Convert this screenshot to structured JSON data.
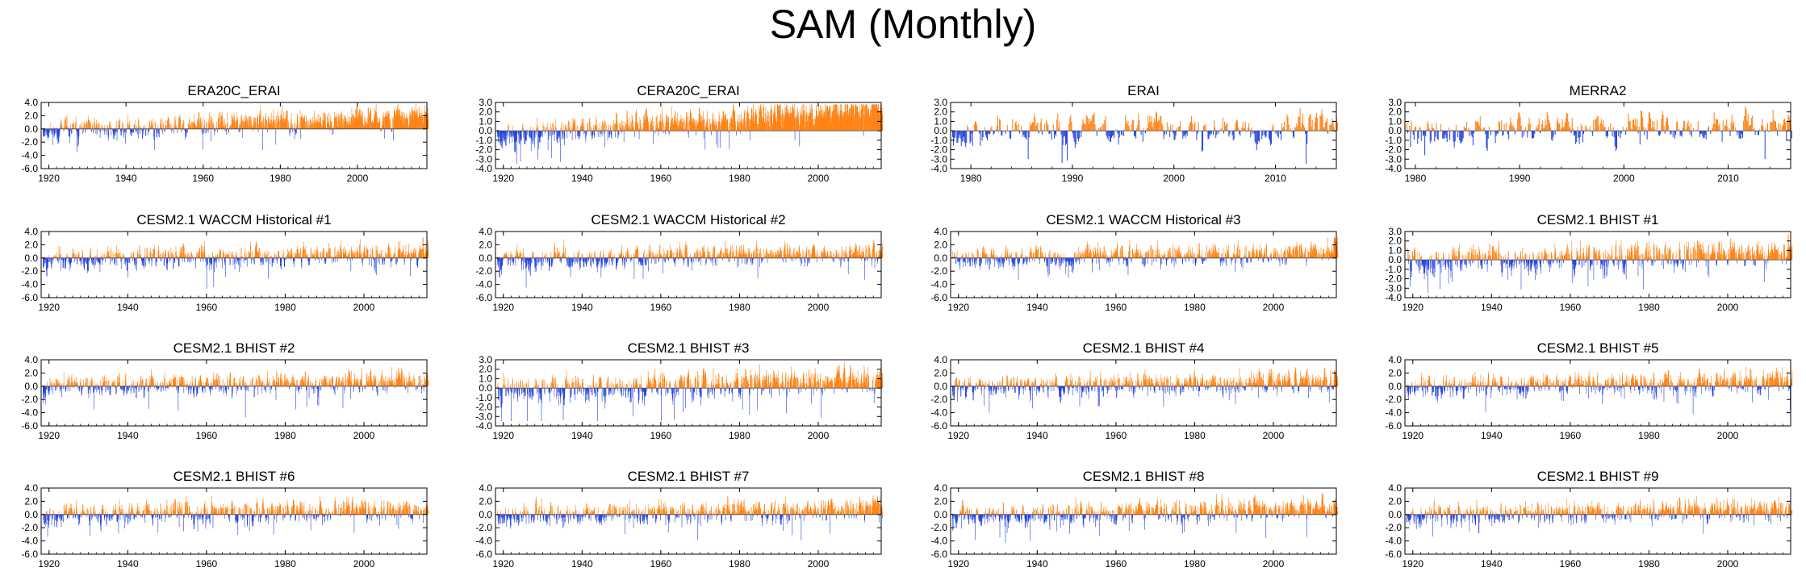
{
  "title": "SAM (Monthly)",
  "colors": {
    "positive": "#ff7f0e",
    "negative": "#1f3fe0",
    "faint": "#c8c8c8",
    "axis": "#000000"
  },
  "chart_data": [
    {
      "type": "bar",
      "title": "ERA20C_ERAI",
      "xlabel": "",
      "ylabel": "",
      "x_range": [
        1918,
        2018
      ],
      "ylim": [
        -6,
        4
      ],
      "yticks": [
        4,
        2,
        0,
        -2,
        -4,
        -6
      ],
      "ytick_labels": [
        "4.0",
        "2.0",
        "0.0",
        "-2.0",
        "-4.0",
        "-6.0"
      ],
      "xticks": [
        1920,
        1940,
        1960,
        1980,
        2000
      ],
      "xtick_labels": [
        "1920",
        "1940",
        "1960",
        "1980",
        "2000"
      ],
      "trend": 0.7,
      "amp": 1.1,
      "seed": 11
    },
    {
      "type": "bar",
      "title": "CERA20C_ERAI",
      "xlabel": "",
      "ylabel": "",
      "x_range": [
        1918,
        2016
      ],
      "ylim": [
        -4,
        3
      ],
      "yticks": [
        3,
        2,
        1,
        0,
        -1,
        -2,
        -3,
        -4
      ],
      "ytick_labels": [
        "3.0",
        "2.0",
        "1.0",
        "0.0",
        "-1.0",
        "-2.0",
        "-3.0",
        "-4.0"
      ],
      "xticks": [
        1920,
        1940,
        1960,
        1980,
        2000
      ],
      "xtick_labels": [
        "1920",
        "1940",
        "1960",
        "1980",
        "2000"
      ],
      "trend": 0.9,
      "amp": 0.9,
      "seed": 23
    },
    {
      "type": "bar",
      "title": "ERAI",
      "xlabel": "",
      "ylabel": "",
      "x_range": [
        1978,
        2016
      ],
      "ylim": [
        -4,
        3
      ],
      "yticks": [
        3,
        2,
        1,
        0,
        -1,
        -2,
        -3,
        -4
      ],
      "ytick_labels": [
        "3.0",
        "2.0",
        "1.0",
        "0.0",
        "-1.0",
        "-2.0",
        "-3.0",
        "-4.0"
      ],
      "xticks": [
        1980,
        1990,
        2000,
        2010
      ],
      "xtick_labels": [
        "1980",
        "1990",
        "2000",
        "2010"
      ],
      "trend": 0.2,
      "amp": 1.0,
      "seed": 37
    },
    {
      "type": "bar",
      "title": "MERRA2",
      "xlabel": "",
      "ylabel": "",
      "x_range": [
        1979,
        2016
      ],
      "ylim": [
        -4,
        3
      ],
      "yticks": [
        3,
        2,
        1,
        0,
        -1,
        -2,
        -3,
        -4
      ],
      "ytick_labels": [
        "3.0",
        "2.0",
        "1.0",
        "0.0",
        "-1.0",
        "-2.0",
        "-3.0",
        "-4.0"
      ],
      "xticks": [
        1980,
        1990,
        2000,
        2010
      ],
      "xtick_labels": [
        "1980",
        "1990",
        "2000",
        "2010"
      ],
      "trend": 0.2,
      "amp": 1.0,
      "seed": 41
    },
    {
      "type": "bar",
      "title": "CESM2.1 WACCM Historical #1",
      "xlabel": "",
      "ylabel": "",
      "x_range": [
        1918,
        2016
      ],
      "ylim": [
        -6,
        4
      ],
      "yticks": [
        4,
        2,
        0,
        -2,
        -4,
        -6
      ],
      "ytick_labels": [
        "4.0",
        "2.0",
        "0.0",
        "-2.0",
        "-4.0",
        "-6.0"
      ],
      "xticks": [
        1920,
        1940,
        1960,
        1980,
        2000
      ],
      "xtick_labels": [
        "1920",
        "1940",
        "1960",
        "1980",
        "2000"
      ],
      "trend": 0.3,
      "amp": 1.1,
      "seed": 53
    },
    {
      "type": "bar",
      "title": "CESM2.1 WACCM Historical #2",
      "xlabel": "",
      "ylabel": "",
      "x_range": [
        1918,
        2016
      ],
      "ylim": [
        -6,
        4
      ],
      "yticks": [
        4,
        2,
        0,
        -2,
        -4,
        -6
      ],
      "ytick_labels": [
        "4.0",
        "2.0",
        "0.0",
        "-2.0",
        "-4.0",
        "-6.0"
      ],
      "xticks": [
        1920,
        1940,
        1960,
        1980,
        2000
      ],
      "xtick_labels": [
        "1920",
        "1940",
        "1960",
        "1980",
        "2000"
      ],
      "trend": 0.3,
      "amp": 1.1,
      "seed": 67
    },
    {
      "type": "bar",
      "title": "CESM2.1 WACCM Historical #3",
      "xlabel": "",
      "ylabel": "",
      "x_range": [
        1918,
        2016
      ],
      "ylim": [
        -6,
        4
      ],
      "yticks": [
        4,
        2,
        0,
        -2,
        -4,
        -6
      ],
      "ytick_labels": [
        "4.0",
        "2.0",
        "0.0",
        "-2.0",
        "-4.0",
        "-6.0"
      ],
      "xticks": [
        1920,
        1940,
        1960,
        1980,
        2000
      ],
      "xtick_labels": [
        "1920",
        "1940",
        "1960",
        "1980",
        "2000"
      ],
      "trend": 0.3,
      "amp": 1.1,
      "seed": 71
    },
    {
      "type": "bar",
      "title": "CESM2.1 BHIST #1",
      "xlabel": "",
      "ylabel": "",
      "x_range": [
        1918,
        2016
      ],
      "ylim": [
        -4,
        3
      ],
      "yticks": [
        3,
        2,
        1,
        0,
        -1,
        -2,
        -3,
        -4
      ],
      "ytick_labels": [
        "3.0",
        "2.0",
        "1.0",
        "0.0",
        "-1.0",
        "-2.0",
        "-3.0",
        "-4.0"
      ],
      "xticks": [
        1920,
        1940,
        1960,
        1980,
        2000
      ],
      "xtick_labels": [
        "1920",
        "1940",
        "1960",
        "1980",
        "2000"
      ],
      "trend": 0.3,
      "amp": 1.0,
      "seed": 83
    },
    {
      "type": "bar",
      "title": "CESM2.1 BHIST #2",
      "xlabel": "",
      "ylabel": "",
      "x_range": [
        1918,
        2016
      ],
      "ylim": [
        -6,
        4
      ],
      "yticks": [
        4,
        2,
        0,
        -2,
        -4,
        -6
      ],
      "ytick_labels": [
        "4.0",
        "2.0",
        "0.0",
        "-2.0",
        "-4.0",
        "-6.0"
      ],
      "xticks": [
        1920,
        1940,
        1960,
        1980,
        2000
      ],
      "xtick_labels": [
        "1920",
        "1940",
        "1960",
        "1980",
        "2000"
      ],
      "trend": 0.3,
      "amp": 1.1,
      "seed": 97
    },
    {
      "type": "bar",
      "title": "CESM2.1 BHIST #3",
      "xlabel": "",
      "ylabel": "",
      "x_range": [
        1918,
        2016
      ],
      "ylim": [
        -4,
        3
      ],
      "yticks": [
        3,
        2,
        1,
        0,
        -1,
        -2,
        -3,
        -4
      ],
      "ytick_labels": [
        "3.0",
        "2.0",
        "1.0",
        "0.0",
        "-1.0",
        "-2.0",
        "-3.0",
        "-4.0"
      ],
      "xticks": [
        1920,
        1940,
        1960,
        1980,
        2000
      ],
      "xtick_labels": [
        "1920",
        "1940",
        "1960",
        "1980",
        "2000"
      ],
      "trend": 0.3,
      "amp": 1.0,
      "seed": 101
    },
    {
      "type": "bar",
      "title": "CESM2.1 BHIST #4",
      "xlabel": "",
      "ylabel": "",
      "x_range": [
        1918,
        2016
      ],
      "ylim": [
        -6,
        4
      ],
      "yticks": [
        4,
        2,
        0,
        -2,
        -4,
        -6
      ],
      "ytick_labels": [
        "4.0",
        "2.0",
        "0.0",
        "-2.0",
        "-4.0",
        "-6.0"
      ],
      "xticks": [
        1920,
        1940,
        1960,
        1980,
        2000
      ],
      "xtick_labels": [
        "1920",
        "1940",
        "1960",
        "1980",
        "2000"
      ],
      "trend": 0.3,
      "amp": 1.1,
      "seed": 113
    },
    {
      "type": "bar",
      "title": "CESM2.1 BHIST #5",
      "xlabel": "",
      "ylabel": "",
      "x_range": [
        1918,
        2016
      ],
      "ylim": [
        -6,
        4
      ],
      "yticks": [
        4,
        2,
        0,
        -2,
        -4,
        -6
      ],
      "ytick_labels": [
        "4.0",
        "2.0",
        "0.0",
        "-2.0",
        "-4.0",
        "-6.0"
      ],
      "xticks": [
        1920,
        1940,
        1960,
        1980,
        2000
      ],
      "xtick_labels": [
        "1920",
        "1940",
        "1960",
        "1980",
        "2000"
      ],
      "trend": 0.3,
      "amp": 1.1,
      "seed": 127
    },
    {
      "type": "bar",
      "title": "CESM2.1 BHIST #6",
      "xlabel": "",
      "ylabel": "",
      "x_range": [
        1918,
        2016
      ],
      "ylim": [
        -6,
        4
      ],
      "yticks": [
        4,
        2,
        0,
        -2,
        -4,
        -6
      ],
      "ytick_labels": [
        "4.0",
        "2.0",
        "0.0",
        "-2.0",
        "-4.0",
        "-6.0"
      ],
      "xticks": [
        1920,
        1940,
        1960,
        1980,
        2000
      ],
      "xtick_labels": [
        "1920",
        "1940",
        "1960",
        "1980",
        "2000"
      ],
      "trend": 0.3,
      "amp": 1.1,
      "seed": 131
    },
    {
      "type": "bar",
      "title": "CESM2.1 BHIST #7",
      "xlabel": "",
      "ylabel": "",
      "x_range": [
        1918,
        2016
      ],
      "ylim": [
        -6,
        4
      ],
      "yticks": [
        4,
        2,
        0,
        -2,
        -4,
        -6
      ],
      "ytick_labels": [
        "4.0",
        "2.0",
        "0.0",
        "-2.0",
        "-4.0",
        "-6.0"
      ],
      "xticks": [
        1920,
        1940,
        1960,
        1980,
        2000
      ],
      "xtick_labels": [
        "1920",
        "1940",
        "1960",
        "1980",
        "2000"
      ],
      "trend": 0.3,
      "amp": 1.1,
      "seed": 149
    },
    {
      "type": "bar",
      "title": "CESM2.1 BHIST #8",
      "xlabel": "",
      "ylabel": "",
      "x_range": [
        1918,
        2016
      ],
      "ylim": [
        -6,
        4
      ],
      "yticks": [
        4,
        2,
        0,
        -2,
        -4,
        -6
      ],
      "ytick_labels": [
        "4.0",
        "2.0",
        "0.0",
        "-2.0",
        "-4.0",
        "-6.0"
      ],
      "xticks": [
        1920,
        1940,
        1960,
        1980,
        2000
      ],
      "xtick_labels": [
        "1920",
        "1940",
        "1960",
        "1980",
        "2000"
      ],
      "trend": 0.3,
      "amp": 1.1,
      "seed": 157
    },
    {
      "type": "bar",
      "title": "CESM2.1 BHIST #9",
      "xlabel": "",
      "ylabel": "",
      "x_range": [
        1918,
        2016
      ],
      "ylim": [
        -6,
        4
      ],
      "yticks": [
        4,
        2,
        0,
        -2,
        -4,
        -6
      ],
      "ytick_labels": [
        "4.0",
        "2.0",
        "0.0",
        "-2.0",
        "-4.0",
        "-6.0"
      ],
      "xticks": [
        1920,
        1940,
        1960,
        1980,
        2000
      ],
      "xtick_labels": [
        "1920",
        "1940",
        "1960",
        "1980",
        "2000"
      ],
      "trend": 0.3,
      "amp": 1.1,
      "seed": 163
    }
  ]
}
